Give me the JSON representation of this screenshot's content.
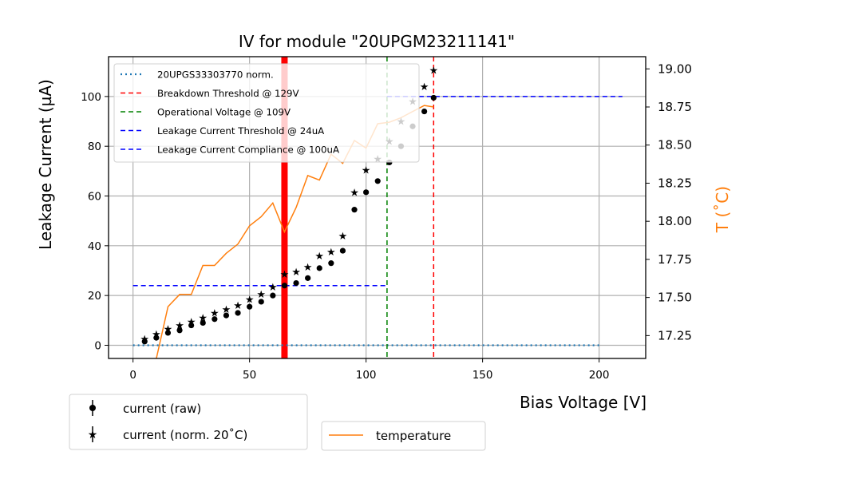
{
  "chart_data": {
    "type": "scatter",
    "title": "IV for module \"20UPGM23211141\"",
    "xlabel": "Bias Voltage [V]",
    "ylabel": "Leakage Current (µA)",
    "y2label": "T (˚C)",
    "xlim": [
      -10.5,
      220
    ],
    "ylim": [
      -5.3,
      116
    ],
    "y2lim": [
      17.1,
      19.08
    ],
    "grid": true,
    "x_ticks": [
      0,
      50,
      100,
      150,
      200
    ],
    "y_ticks": [
      0,
      20,
      40,
      60,
      80,
      100
    ],
    "y2_ticks": [
      "17.25",
      "17.50",
      "17.75",
      "18.00",
      "18.25",
      "18.50",
      "18.75",
      "19.00"
    ],
    "x": [
      5,
      10,
      15,
      20,
      25,
      30,
      35,
      40,
      45,
      50,
      55,
      60,
      65,
      70,
      75,
      80,
      85,
      90,
      95,
      100,
      105,
      110,
      115,
      120,
      125,
      129
    ],
    "series": [
      {
        "name": "current (raw)",
        "marker": "circle",
        "axis": "left",
        "color": "#000000",
        "values": [
          1.5,
          3,
          5,
          6,
          8,
          9,
          10.5,
          12,
          13,
          15.5,
          17.5,
          20,
          24,
          25,
          27,
          31,
          33,
          38,
          54.5,
          61.5,
          66,
          73.5,
          80,
          88,
          94,
          99.5
        ]
      },
      {
        "name": "current (norm. 20˚C)",
        "marker": "star",
        "axis": "left",
        "color": "#000000",
        "values": [
          2.5,
          4.5,
          6.5,
          8,
          9.5,
          11,
          13,
          14.5,
          16,
          18.5,
          20.5,
          23.5,
          28.5,
          29.5,
          31.5,
          36,
          37.5,
          44,
          61.5,
          70.5,
          75,
          82,
          90,
          98,
          104,
          110.5
        ]
      },
      {
        "name": "temperature",
        "marker": "line",
        "axis": "right",
        "color": "#ff7f0e",
        "values": [
          null,
          17.1,
          17.44,
          17.52,
          17.52,
          17.71,
          17.71,
          17.79,
          17.85,
          17.97,
          18.03,
          18.12,
          17.93,
          18.09,
          18.3,
          18.27,
          18.44,
          18.38,
          18.53,
          18.48,
          18.64,
          18.65,
          18.68,
          18.72,
          18.76,
          18.75
        ]
      }
    ],
    "reference_lines": [
      {
        "label": "20UPGS33303770 norm.",
        "style": "dotted",
        "color": "#1f77b4",
        "orientation": "horizontal",
        "y": 0,
        "x_range": [
          0,
          200
        ]
      },
      {
        "label": "Breakdown Threshold @ 129V",
        "style": "dashed",
        "color": "#ff0000",
        "orientation": "vertical",
        "x": 129
      },
      {
        "label": "Operational Voltage @ 109V",
        "style": "dashed",
        "color": "#008000",
        "orientation": "vertical",
        "x": 109
      },
      {
        "label": "Leakage Current Threshold @ 24uA",
        "style": "dashed",
        "color": "#0000ff",
        "orientation": "horizontal",
        "y": 24,
        "x_range": [
          0,
          109
        ]
      },
      {
        "label": "Leakage Current Compliance @ 100uA",
        "style": "dashed",
        "color": "#0000ff",
        "orientation": "horizontal",
        "y": 100,
        "x_range": [
          109,
          210
        ]
      }
    ],
    "highlight_band": {
      "x": 65,
      "color": "#ff0000"
    },
    "legend_main_placement": "top-left",
    "legend_current_placement": "below-left",
    "legend_temperature_placement": "below-center"
  }
}
